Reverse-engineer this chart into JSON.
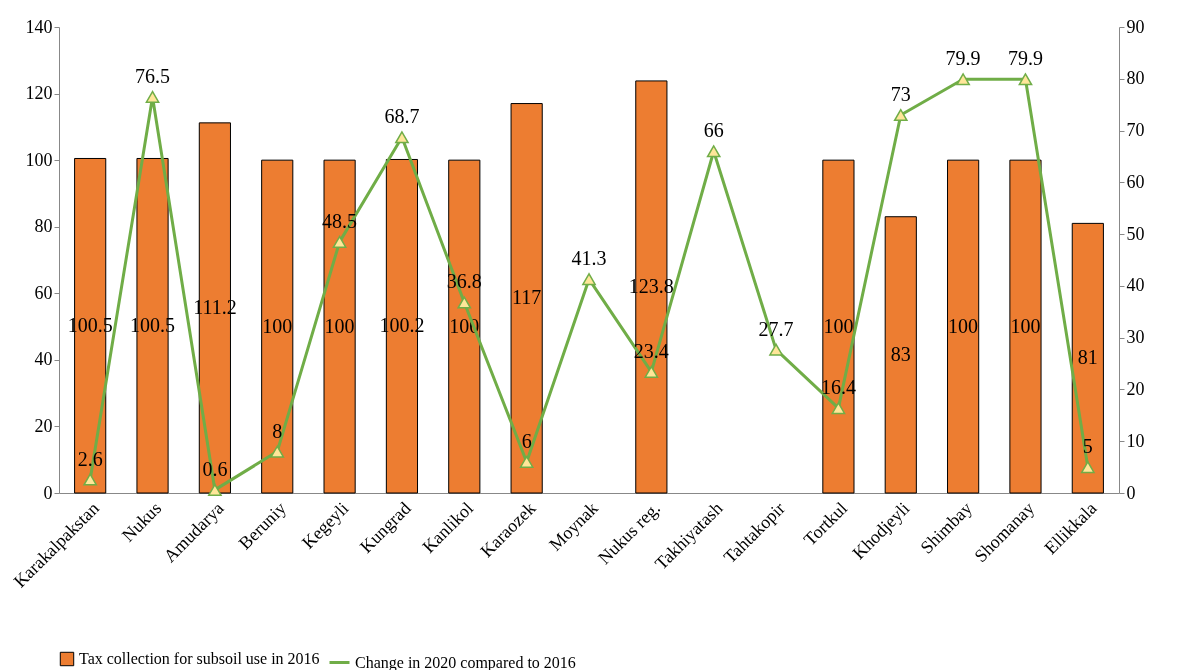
{
  "chart_data": {
    "type": "bar",
    "categories": [
      "Karakalpakstan",
      "Nukus",
      "Amudarya",
      "Beruniy",
      "Kegeyli",
      "Kungrad",
      "Kanlikol",
      "Karaozek",
      "Moynak",
      "Nukus reg.",
      "Takhiyatash",
      "Tahtakopir",
      "Tortkul",
      "Khodjeyli",
      "Shimbay",
      "Shomanay",
      "Ellikkala"
    ],
    "series": [
      {
        "name": "Tax collection for subsoil use in 2016",
        "color": "#ed7d31",
        "values": [
          100.5,
          100.5,
          111.2,
          100,
          100,
          100.2,
          100,
          117,
          null,
          123.8,
          null,
          null,
          100,
          83,
          100,
          100,
          81
        ]
      },
      {
        "name": "Change in 2020 compared to 2016",
        "type": "line",
        "axis": "y2",
        "color": "#70ad47",
        "marker": "triangle",
        "values": [
          2.6,
          76.5,
          0.6,
          8,
          48.5,
          68.7,
          36.8,
          6,
          41.3,
          23.4,
          66,
          27.7,
          16.4,
          73,
          79.9,
          79.9,
          5
        ]
      }
    ],
    "ylim": [
      0,
      140
    ],
    "yticks": [
      0,
      20,
      40,
      60,
      80,
      100,
      120,
      140
    ],
    "y2lim": [
      0,
      90
    ],
    "y2ticks": [
      0,
      10,
      20,
      30,
      40,
      50,
      60,
      70,
      80,
      90
    ],
    "data_labels": true,
    "legend": "bottom",
    "grid": false
  }
}
